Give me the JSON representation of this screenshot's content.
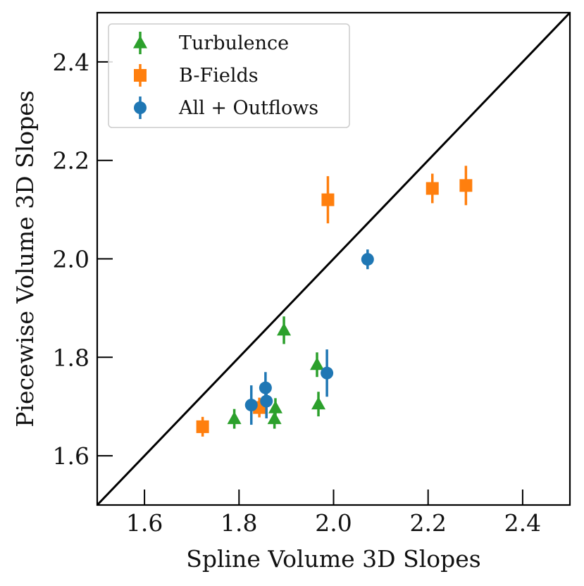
{
  "chart_data": {
    "type": "scatter",
    "title": "",
    "xlabel": "Spline Volume 3D Slopes",
    "ylabel": "Piecewise Volume 3D Slopes",
    "xlim": [
      1.5,
      2.5
    ],
    "ylim": [
      1.5,
      2.5
    ],
    "xticks": [
      "1.6",
      "1.8",
      "2.0",
      "2.2",
      "2.4"
    ],
    "yticks": [
      "1.6",
      "1.8",
      "2.0",
      "2.2",
      "2.4"
    ],
    "xtick_values": [
      1.6,
      1.8,
      2.0,
      2.2,
      2.4
    ],
    "ytick_values": [
      1.6,
      1.8,
      2.0,
      2.2,
      2.4
    ],
    "grid": false,
    "legend_position": "top-left",
    "reference_line": {
      "name": "one-to-one",
      "x": [
        1.5,
        2.5
      ],
      "y": [
        1.5,
        2.5
      ],
      "color": "#000000"
    },
    "series": [
      {
        "name": "Turbulence",
        "marker": "triangle",
        "color": "#2ca02c",
        "points": [
          {
            "x": 1.79,
            "y": 1.675,
            "yerr": 0.02
          },
          {
            "x": 1.875,
            "y": 1.675,
            "yerr": 0.02
          },
          {
            "x": 1.877,
            "y": 1.697,
            "yerr": 0.02
          },
          {
            "x": 1.895,
            "y": 1.855,
            "yerr": 0.028
          },
          {
            "x": 1.965,
            "y": 1.785,
            "yerr": 0.025
          },
          {
            "x": 1.968,
            "y": 1.705,
            "yerr": 0.025
          }
        ]
      },
      {
        "name": "B-Fields",
        "marker": "square",
        "color": "#ff7f0e",
        "points": [
          {
            "x": 1.723,
            "y": 1.659,
            "yerr": 0.02
          },
          {
            "x": 1.843,
            "y": 1.698,
            "yerr": 0.02
          },
          {
            "x": 1.988,
            "y": 2.12,
            "yerr": 0.048
          },
          {
            "x": 2.209,
            "y": 2.143,
            "yerr": 0.03
          },
          {
            "x": 2.28,
            "y": 2.149,
            "yerr": 0.04
          }
        ]
      },
      {
        "name": "All + Outflows",
        "marker": "circle",
        "color": "#1f77b4",
        "points": [
          {
            "x": 1.826,
            "y": 1.703,
            "yerr": 0.04
          },
          {
            "x": 1.856,
            "y": 1.738,
            "yerr": 0.032
          },
          {
            "x": 1.858,
            "y": 1.711,
            "yerr": 0.035
          },
          {
            "x": 1.986,
            "y": 1.768,
            "yerr": 0.048
          },
          {
            "x": 2.072,
            "y": 1.999,
            "yerr": 0.02
          }
        ]
      }
    ]
  }
}
